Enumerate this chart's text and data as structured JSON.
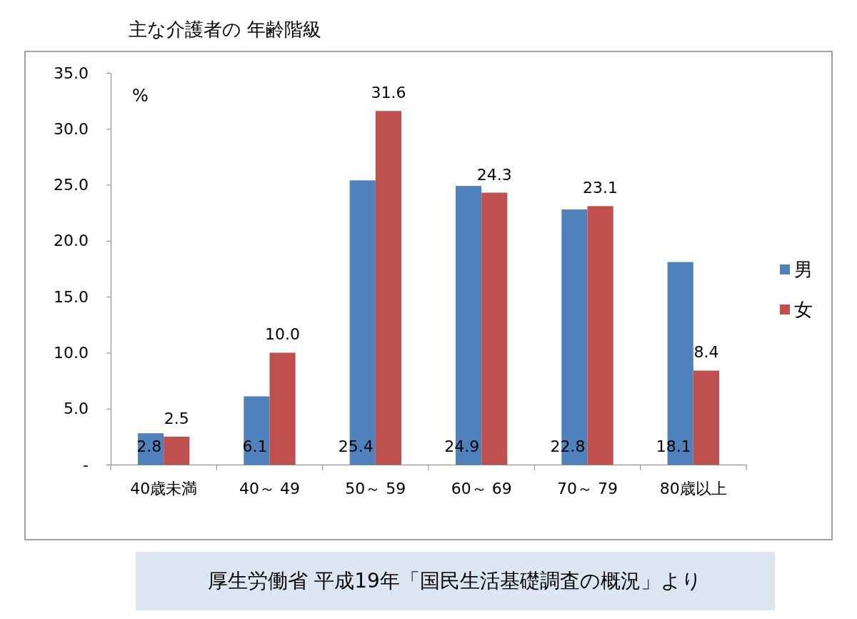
{
  "chart_data": {
    "type": "bar",
    "title": "主な介護者の 年齢階級",
    "ylabel": "%",
    "categories": [
      "40歳未満",
      "40～ 49",
      "50～ 59",
      "60～ 69",
      "70～ 79",
      "80歳以上"
    ],
    "series": [
      {
        "name": "男",
        "color": "#4f81bd",
        "values": [
          2.8,
          6.1,
          25.4,
          24.9,
          22.8,
          18.1
        ],
        "value_labels": [
          "2.8",
          "6.1",
          "25.4",
          "24.9",
          "22.8",
          "18.1"
        ]
      },
      {
        "name": "女",
        "color": "#c0504d",
        "values": [
          2.5,
          10.0,
          31.6,
          24.3,
          23.1,
          8.4
        ],
        "value_labels": [
          "2.5",
          "10.0",
          "31.6",
          "24.3",
          "23.1",
          "8.4"
        ]
      }
    ],
    "ylim": [
      0,
      35
    ],
    "yticks": [
      {
        "value": 0,
        "label": "-"
      },
      {
        "value": 5,
        "label": "5.0"
      },
      {
        "value": 10,
        "label": "10.0"
      },
      {
        "value": 15,
        "label": "15.0"
      },
      {
        "value": 20,
        "label": "20.0"
      },
      {
        "value": 25,
        "label": "25.0"
      },
      {
        "value": 30,
        "label": "30.0"
      },
      {
        "value": 35,
        "label": "35.0"
      }
    ],
    "legend": "right",
    "grid": false,
    "annotations": [
      "厚生労働省 平成19年「国民生活基礎調査の概況」より"
    ]
  }
}
